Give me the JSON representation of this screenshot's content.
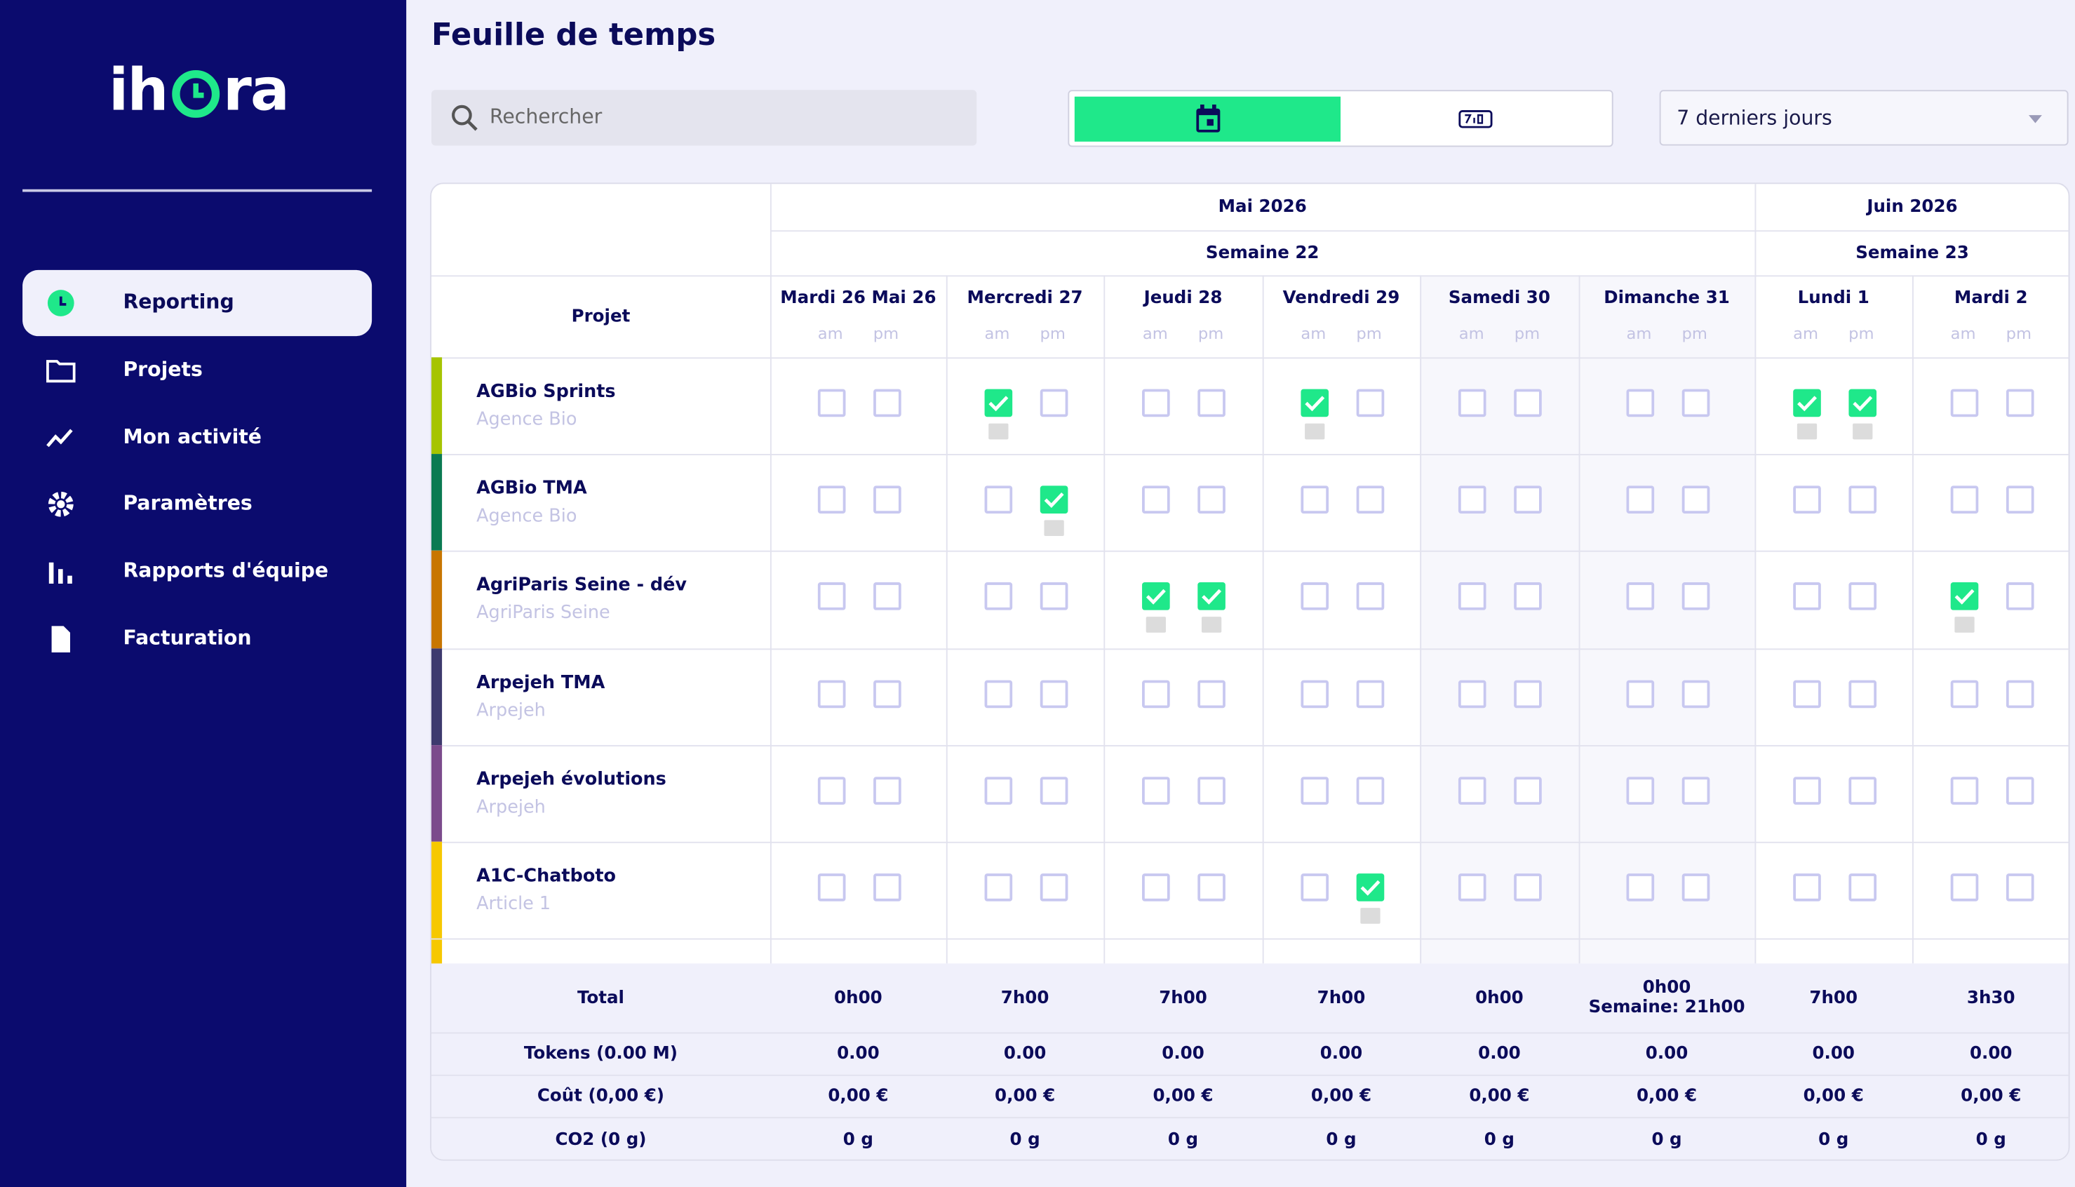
{
  "logo": {
    "left": "ih",
    "right": "ra"
  },
  "nav": [
    "Reporting",
    "Projets",
    "Mon activité",
    "Paramètres",
    "Rapports d'équipe",
    "Facturation"
  ],
  "header": {
    "title": "Feuille de temps",
    "search_placeholder": "Rechercher",
    "period": "7 derniers jours"
  },
  "table": {
    "project_header": "Projet",
    "half_labels": [
      "am",
      "pm"
    ],
    "months": [
      "Mai 2026",
      "Juin 2026"
    ],
    "weeks": [
      "Semaine 22",
      "Semaine 23"
    ],
    "days": [
      "Mardi 26 Mai 26",
      "Mercredi 27",
      "Jeudi 28",
      "Vendredi 29",
      "Samedi 30",
      "Dimanche 31",
      "Lundi 1",
      "Mardi 2"
    ],
    "rows": [
      {
        "name": "AGBio Sprints",
        "client": "Agence Bio",
        "color": "#a6c400",
        "checks": [
          [
            false,
            false
          ],
          [
            true,
            false
          ],
          [
            false,
            false
          ],
          [
            true,
            false
          ],
          [
            false,
            false
          ],
          [
            false,
            false
          ],
          [
            true,
            true
          ],
          [
            false,
            false
          ]
        ]
      },
      {
        "name": "AGBio TMA",
        "client": "Agence Bio",
        "color": "#0b7a52",
        "checks": [
          [
            false,
            false
          ],
          [
            false,
            true
          ],
          [
            false,
            false
          ],
          [
            false,
            false
          ],
          [
            false,
            false
          ],
          [
            false,
            false
          ],
          [
            false,
            false
          ],
          [
            false,
            false
          ]
        ]
      },
      {
        "name": "AgriParis Seine - dév",
        "client": "AgriParis Seine",
        "color": "#c87600",
        "checks": [
          [
            false,
            false
          ],
          [
            false,
            false
          ],
          [
            true,
            true
          ],
          [
            false,
            false
          ],
          [
            false,
            false
          ],
          [
            false,
            false
          ],
          [
            false,
            false
          ],
          [
            true,
            false
          ]
        ]
      },
      {
        "name": "Arpejeh TMA",
        "client": "Arpejeh",
        "color": "#3d3a6e",
        "checks": [
          [
            false,
            false
          ],
          [
            false,
            false
          ],
          [
            false,
            false
          ],
          [
            false,
            false
          ],
          [
            false,
            false
          ],
          [
            false,
            false
          ],
          [
            false,
            false
          ],
          [
            false,
            false
          ]
        ]
      },
      {
        "name": "Arpejeh évolutions",
        "client": "Arpejeh",
        "color": "#7b4b8c",
        "checks": [
          [
            false,
            false
          ],
          [
            false,
            false
          ],
          [
            false,
            false
          ],
          [
            false,
            false
          ],
          [
            false,
            false
          ],
          [
            false,
            false
          ],
          [
            false,
            false
          ],
          [
            false,
            false
          ]
        ]
      },
      {
        "name": "A1C-Chatboto",
        "client": "Article 1",
        "color": "#f6c800",
        "checks": [
          [
            false,
            false
          ],
          [
            false,
            false
          ],
          [
            false,
            false
          ],
          [
            false,
            true
          ],
          [
            false,
            false
          ],
          [
            false,
            false
          ],
          [
            false,
            false
          ],
          [
            false,
            false
          ]
        ]
      }
    ],
    "footer": [
      {
        "label": "Total",
        "values": [
          "0h00",
          "7h00",
          "7h00",
          "7h00",
          "0h00",
          [
            "0h00",
            "Semaine: 21h00"
          ],
          "7h00",
          "3h30"
        ]
      },
      {
        "label": "Tokens (0.00 M)",
        "values": [
          "0.00",
          "0.00",
          "0.00",
          "0.00",
          "0.00",
          "0.00",
          "0.00",
          "0.00"
        ]
      },
      {
        "label": "Coût (0,00 €)",
        "values": [
          "0,00 €",
          "0,00 €",
          "0,00 €",
          "0,00 €",
          "0,00 €",
          "0,00 €",
          "0,00 €",
          "0,00 €"
        ]
      },
      {
        "label": "CO2 (0 g)",
        "values": [
          "0 g",
          "0 g",
          "0 g",
          "0 g",
          "0 g",
          "0 g",
          "0 g",
          "0 g"
        ]
      }
    ]
  }
}
